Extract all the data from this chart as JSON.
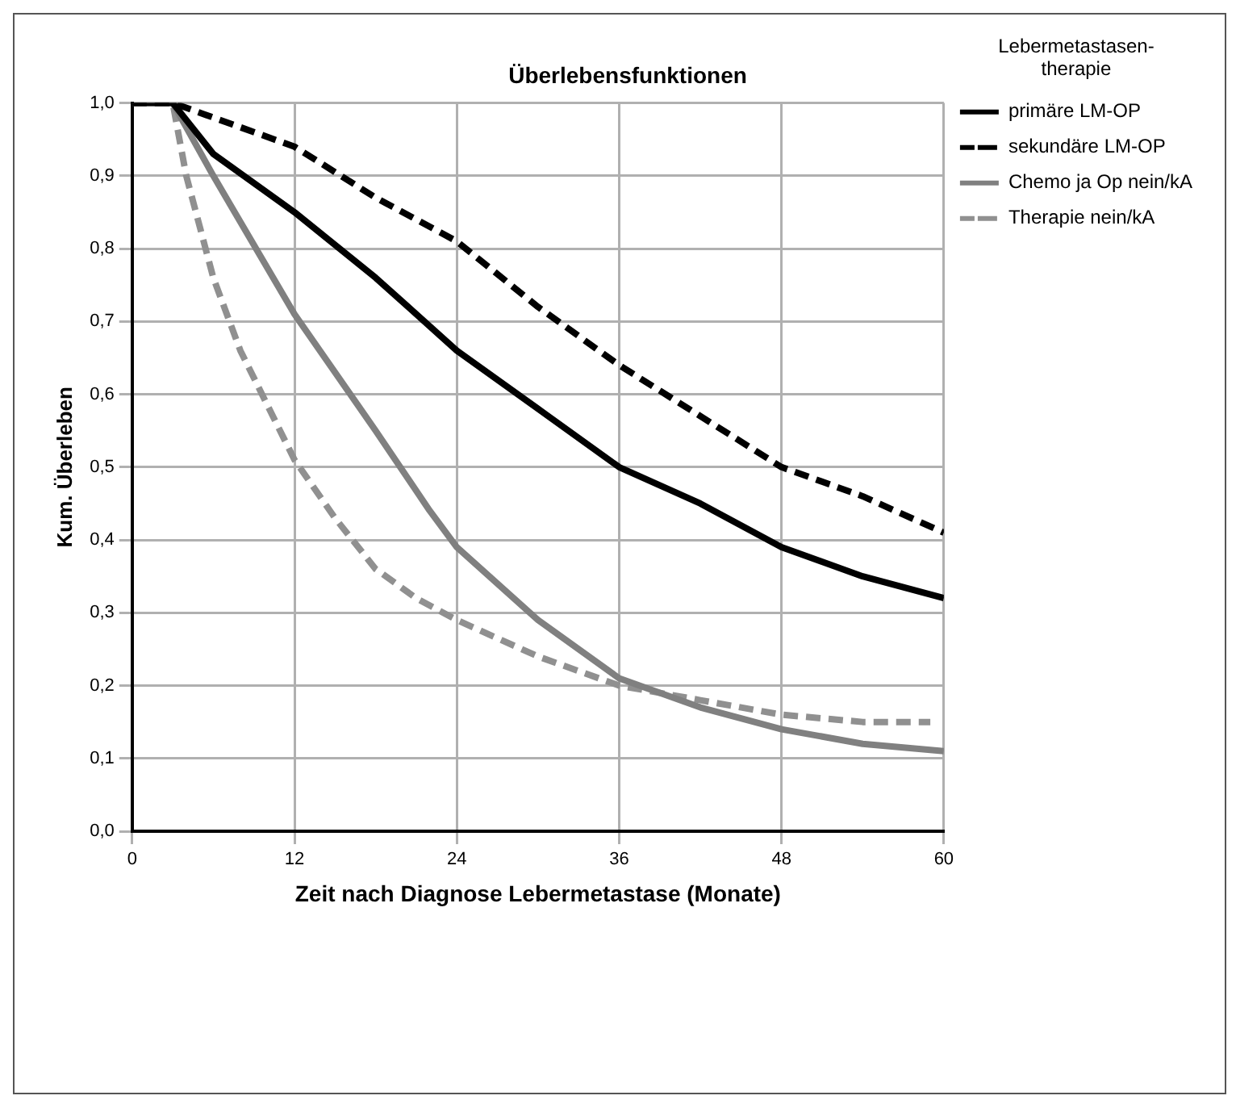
{
  "chart_data": {
    "type": "line",
    "title": "Überlebensfunktionen",
    "xlabel": "Zeit nach Diagnose Lebermetastase (Monate)",
    "ylabel": "Kum. Überleben",
    "legend_title": "Lebermetastasen-therapie",
    "xlim": [
      0,
      60
    ],
    "xticks": [
      0,
      12,
      24,
      36,
      48,
      60
    ],
    "ylim": [
      0,
      1
    ],
    "yticks": [
      {
        "value": 0,
        "label": "0,0"
      },
      {
        "value": 0.1,
        "label": "0,1"
      },
      {
        "value": 0.2,
        "label": "0,2"
      },
      {
        "value": 0.3,
        "label": "0,3"
      },
      {
        "value": 0.4,
        "label": "0,4"
      },
      {
        "value": 0.5,
        "label": "0,5"
      },
      {
        "value": 0.6,
        "label": "0,6"
      },
      {
        "value": 0.7,
        "label": "0,7"
      },
      {
        "value": 0.8,
        "label": "0,8"
      },
      {
        "value": 0.9,
        "label": "0,9"
      },
      {
        "value": 1,
        "label": "1,0"
      }
    ],
    "grid": true,
    "legend": "right",
    "marker": "none",
    "series": [
      {
        "name": "primäre LM-OP",
        "color": "#000000",
        "line_style": "solid",
        "x": [
          0,
          3,
          6,
          12,
          18,
          24,
          30,
          36,
          42,
          48,
          54,
          60
        ],
        "values": [
          1,
          1,
          0.93,
          0.85,
          0.76,
          0.66,
          0.58,
          0.5,
          0.45,
          0.39,
          0.35,
          0.32
        ]
      },
      {
        "name": "sekundäre LM-OP",
        "color": "#000000",
        "line_style": "dashed",
        "x": [
          0,
          3,
          6,
          12,
          18,
          24,
          30,
          36,
          42,
          48,
          54,
          60
        ],
        "values": [
          1,
          1,
          0.98,
          0.94,
          0.87,
          0.81,
          0.72,
          0.64,
          0.57,
          0.5,
          0.46,
          0.41
        ]
      },
      {
        "name": "Chemo ja Op nein/kA",
        "color": "#808080",
        "line_style": "solid",
        "x": [
          0,
          3,
          6,
          12,
          18,
          22,
          24,
          30,
          36,
          42,
          48,
          54,
          60
        ],
        "values": [
          1,
          1,
          0.9,
          0.71,
          0.55,
          0.44,
          0.39,
          0.29,
          0.21,
          0.17,
          0.14,
          0.12,
          0.11
        ]
      },
      {
        "name": "Therapie nein/kA",
        "color": "#909090",
        "line_style": "dashed",
        "x": [
          0,
          3,
          4,
          6,
          8,
          12,
          15,
          18,
          21,
          24,
          30,
          36,
          42,
          48,
          54,
          59
        ],
        "values": [
          1,
          1,
          0.9,
          0.76,
          0.66,
          0.51,
          0.43,
          0.36,
          0.32,
          0.29,
          0.24,
          0.2,
          0.18,
          0.16,
          0.15,
          0.15
        ]
      }
    ]
  }
}
